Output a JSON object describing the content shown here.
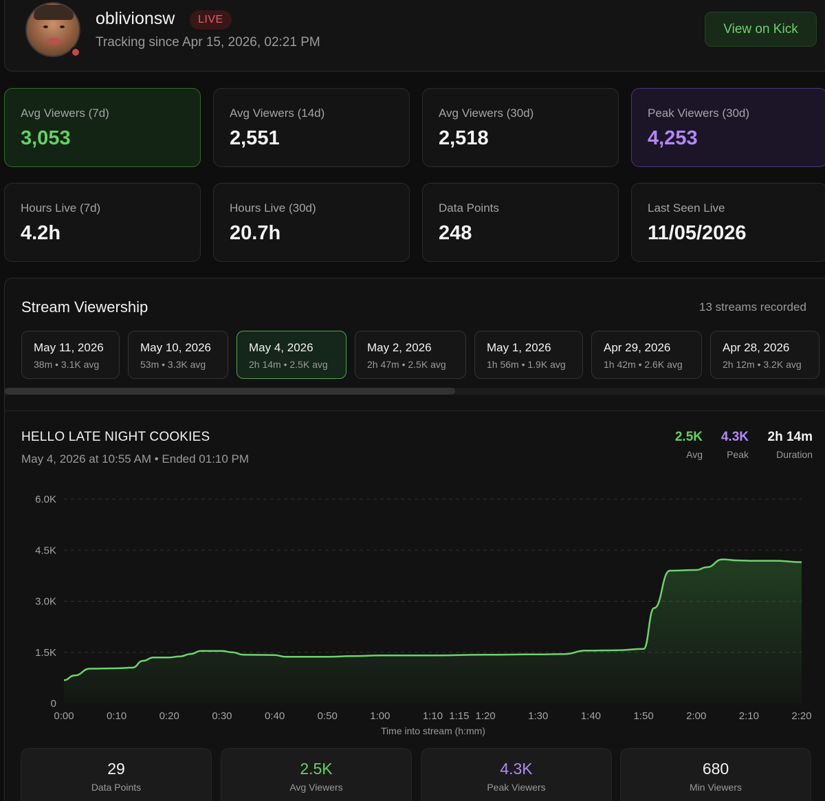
{
  "profile": {
    "username": "oblivionsw",
    "live_badge": "LIVE",
    "tracking_text": "Tracking since Apr 15, 2026, 02:21 PM",
    "view_button": "View on Kick"
  },
  "stats": [
    {
      "label": "Avg Viewers (7d)",
      "value": "3,053"
    },
    {
      "label": "Avg Viewers (14d)",
      "value": "2,551"
    },
    {
      "label": "Avg Viewers (30d)",
      "value": "2,518"
    },
    {
      "label": "Peak Viewers (30d)",
      "value": "4,253"
    },
    {
      "label": "Hours Live (7d)",
      "value": "4.2h"
    },
    {
      "label": "Hours Live (30d)",
      "value": "20.7h"
    },
    {
      "label": "Data Points",
      "value": "248"
    },
    {
      "label": "Last Seen Live",
      "value": "11/05/2026"
    }
  ],
  "viewership": {
    "title": "Stream Viewership",
    "count_text": "13 streams recorded",
    "streams": [
      {
        "date": "May 11, 2026",
        "meta": "38m • 3.1K avg"
      },
      {
        "date": "May 10, 2026",
        "meta": "53m • 3.3K avg"
      },
      {
        "date": "May 4, 2026",
        "meta": "2h 14m • 2.5K avg"
      },
      {
        "date": "May 2, 2026",
        "meta": "2h 47m • 2.5K avg"
      },
      {
        "date": "May 1, 2026",
        "meta": "1h 56m • 1.9K avg"
      },
      {
        "date": "Apr 29, 2026",
        "meta": "1h 42m • 2.6K avg"
      },
      {
        "date": "Apr 28, 2026",
        "meta": "2h 12m • 3.2K avg"
      }
    ],
    "selected_index": 2
  },
  "stream": {
    "title": "HELLO LATE NIGHT COOKIES",
    "subtitle": "May 4, 2026 at 10:55 AM • Ended 01:10 PM",
    "avg": {
      "value": "2.5K",
      "label": "Avg"
    },
    "peak": {
      "value": "4.3K",
      "label": "Peak"
    },
    "duration": {
      "value": "2h 14m",
      "label": "Duration"
    }
  },
  "bottom": [
    {
      "value": "29",
      "label": "Data Points",
      "color": "#f2f2f2"
    },
    {
      "value": "2.5K",
      "label": "Avg Viewers",
      "color": "#64d164"
    },
    {
      "value": "4.3K",
      "label": "Peak Viewers",
      "color": "#b388f5"
    },
    {
      "value": "680",
      "label": "Min Viewers",
      "color": "#f2f2f2"
    }
  ],
  "colors": {
    "green": "#64d164",
    "purple": "#b388f5",
    "line": "#6cd36c"
  },
  "chart_data": {
    "type": "area",
    "xlabel": "Time into stream (h:mm)",
    "ylabel": "",
    "ylim": [
      0,
      6000
    ],
    "yticks": [
      0,
      1500,
      3000,
      4500,
      6000
    ],
    "ytick_labels": [
      "0",
      "1.5K",
      "3.0K",
      "4.5K",
      "6.0K"
    ],
    "xlim": [
      0,
      140
    ],
    "xticks": [
      0,
      10,
      20,
      30,
      40,
      50,
      60,
      70,
      75,
      80,
      90,
      100,
      110,
      120,
      130,
      140
    ],
    "xtick_labels": [
      "0:00",
      "0:10",
      "0:20",
      "0:30",
      "0:40",
      "0:50",
      "1:00",
      "1:10",
      "1:15",
      "1:20",
      "1:30",
      "1:40",
      "1:50",
      "2:00",
      "2:10",
      "2:20"
    ],
    "grid": true,
    "series": [
      {
        "x": [
          0,
          2,
          5,
          10,
          13,
          15,
          17,
          20,
          22,
          24,
          26,
          30,
          32,
          34,
          40,
          42,
          50,
          55,
          60,
          70,
          80,
          90,
          95,
          99,
          105,
          110,
          112,
          115,
          120,
          122,
          125,
          128,
          131,
          135,
          140
        ],
        "values": [
          680,
          820,
          1020,
          1030,
          1050,
          1250,
          1350,
          1350,
          1380,
          1450,
          1540,
          1540,
          1500,
          1430,
          1420,
          1370,
          1370,
          1390,
          1410,
          1410,
          1430,
          1440,
          1450,
          1550,
          1560,
          1600,
          2800,
          3900,
          3920,
          4000,
          4230,
          4200,
          4190,
          4190,
          4150
        ]
      }
    ]
  }
}
